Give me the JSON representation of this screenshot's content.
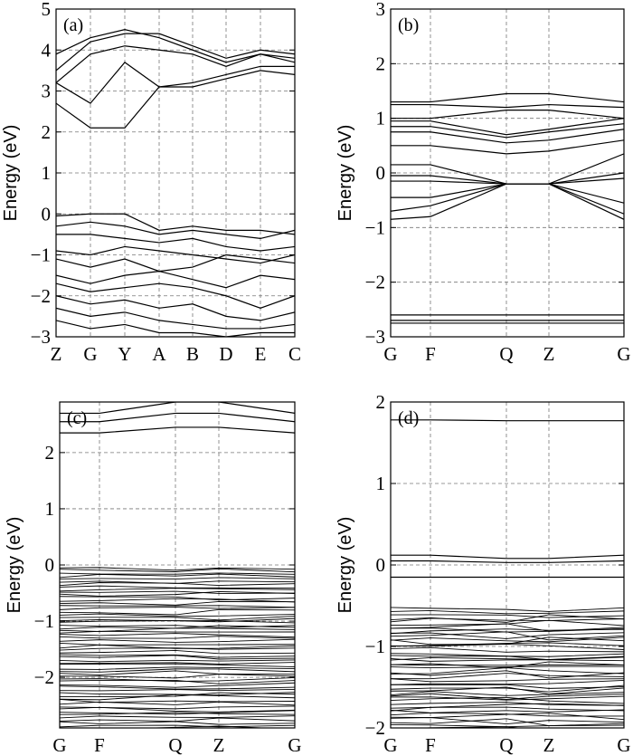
{
  "chart_data": [
    {
      "type": "line",
      "panel_label": "(a)",
      "ylabel": "Energy (eV)",
      "ylim": [
        -3,
        5
      ],
      "yticks": [
        -3,
        -2,
        -1,
        0,
        1,
        2,
        3,
        4,
        5
      ],
      "ytick_labels": [
        "−3",
        "−2",
        "−1",
        "0",
        "1",
        "2",
        "3",
        "4",
        "5"
      ],
      "x_points": [
        "Z",
        "G",
        "Y",
        "A",
        "B",
        "D",
        "E",
        "C"
      ],
      "grid": true,
      "series": [
        {
          "values": [
            3.5,
            4.2,
            4.4,
            4.4,
            4.1,
            3.8,
            4.0,
            3.9
          ]
        },
        {
          "values": [
            3.9,
            4.3,
            4.5,
            4.3,
            4.0,
            3.7,
            3.9,
            3.8
          ]
        },
        {
          "values": [
            3.2,
            3.9,
            4.1,
            4.0,
            3.9,
            3.6,
            3.9,
            3.7
          ]
        },
        {
          "values": [
            3.2,
            2.7,
            3.7,
            3.1,
            3.1,
            3.3,
            3.5,
            3.4
          ]
        },
        {
          "values": [
            2.7,
            2.1,
            2.1,
            3.1,
            3.2,
            3.4,
            3.6,
            3.6
          ]
        },
        {
          "values": [
            -0.05,
            0.0,
            0.0,
            -0.4,
            -0.3,
            -0.4,
            -0.4,
            -0.5
          ]
        },
        {
          "values": [
            -0.3,
            -0.2,
            -0.3,
            -0.5,
            -0.4,
            -0.5,
            -0.6,
            -0.4
          ]
        },
        {
          "values": [
            -0.5,
            -0.5,
            -0.6,
            -0.7,
            -0.6,
            -0.8,
            -0.9,
            -0.8
          ]
        },
        {
          "values": [
            -0.9,
            -1.0,
            -0.8,
            -0.9,
            -1.0,
            -1.1,
            -1.2,
            -1.0
          ]
        },
        {
          "values": [
            -1.1,
            -1.3,
            -1.1,
            -1.4,
            -1.3,
            -1.0,
            -1.1,
            -1.2
          ]
        },
        {
          "values": [
            -1.5,
            -1.7,
            -1.5,
            -1.4,
            -1.6,
            -1.8,
            -1.5,
            -1.6
          ]
        },
        {
          "values": [
            -1.7,
            -1.9,
            -1.8,
            -1.7,
            -1.8,
            -2.0,
            -2.3,
            -2.0
          ]
        },
        {
          "values": [
            -2.0,
            -2.2,
            -2.1,
            -2.3,
            -2.2,
            -2.5,
            -2.6,
            -2.4
          ]
        },
        {
          "values": [
            -2.3,
            -2.5,
            -2.4,
            -2.6,
            -2.7,
            -2.8,
            -2.8,
            -2.7
          ]
        },
        {
          "values": [
            -2.6,
            -2.8,
            -2.7,
            -2.9,
            -2.9,
            -3.0,
            -2.9,
            -2.9
          ]
        }
      ]
    },
    {
      "type": "line",
      "panel_label": "(b)",
      "ylabel": "Energy (eV)",
      "ylim": [
        -3,
        3
      ],
      "yticks": [
        -3,
        -2,
        -1,
        0,
        1,
        2,
        3
      ],
      "ytick_labels": [
        "−3",
        "−2",
        "−1",
        "0",
        "1",
        "2",
        "3"
      ],
      "x_points": [
        "G",
        "F",
        "Q",
        "Z",
        "G"
      ],
      "grid": true,
      "series": [
        {
          "values": [
            1.3,
            1.3,
            1.45,
            1.45,
            1.3
          ]
        },
        {
          "values": [
            1.25,
            1.25,
            1.2,
            1.25,
            1.2
          ]
        },
        {
          "values": [
            1.0,
            1.0,
            1.15,
            1.15,
            1.0
          ]
        },
        {
          "values": [
            0.95,
            0.95,
            0.7,
            0.8,
            1.0
          ]
        },
        {
          "values": [
            0.85,
            0.85,
            0.65,
            0.75,
            0.9
          ]
        },
        {
          "values": [
            0.75,
            0.75,
            0.55,
            0.6,
            0.8
          ]
        },
        {
          "values": [
            0.5,
            0.5,
            0.35,
            0.4,
            0.6
          ]
        },
        {
          "values": [
            0.15,
            0.15,
            -0.2,
            -0.2,
            0.35
          ]
        },
        {
          "values": [
            -0.05,
            -0.05,
            -0.2,
            -0.2,
            0.0
          ]
        },
        {
          "values": [
            -0.15,
            -0.15,
            -0.2,
            -0.2,
            -0.1
          ]
        },
        {
          "values": [
            -0.45,
            -0.45,
            -0.2,
            -0.2,
            -0.55
          ]
        },
        {
          "values": [
            -0.7,
            -0.6,
            -0.2,
            -0.2,
            -0.75
          ]
        },
        {
          "values": [
            -0.85,
            -0.8,
            -0.2,
            -0.2,
            -0.85
          ]
        },
        {
          "values": [
            -2.6,
            -2.6,
            -2.6,
            -2.6,
            -2.6
          ]
        },
        {
          "values": [
            -2.7,
            -2.7,
            -2.7,
            -2.7,
            -2.7
          ]
        },
        {
          "values": [
            -2.75,
            -2.75,
            -2.75,
            -2.75,
            -2.75
          ]
        }
      ]
    },
    {
      "type": "line",
      "panel_label": "(c)",
      "ylabel": "Energy (eV)",
      "ylim": [
        -2.9,
        2.9
      ],
      "yticks": [
        -2,
        -1,
        0,
        1,
        2
      ],
      "ytick_labels": [
        "−2",
        "−1",
        "0",
        "1",
        "2"
      ],
      "x_points": [
        "G",
        "F",
        "Q",
        "Z",
        "G"
      ],
      "grid": true,
      "series": [
        {
          "values": [
            2.7,
            2.7,
            2.9,
            2.9,
            2.7
          ]
        },
        {
          "values": [
            2.55,
            2.55,
            2.7,
            2.7,
            2.55
          ]
        },
        {
          "values": [
            2.35,
            2.35,
            2.45,
            2.45,
            2.35
          ]
        }
      ],
      "valence_band_count": 60,
      "valence_range": [
        -2.9,
        -0.05
      ]
    },
    {
      "type": "line",
      "panel_label": "(d)",
      "ylabel": "Energy (eV)",
      "ylim": [
        -2,
        2
      ],
      "yticks": [
        -2,
        -1,
        0,
        1,
        2
      ],
      "ytick_labels": [
        "−2",
        "−1",
        "0",
        "1",
        "2"
      ],
      "x_points": [
        "G",
        "F",
        "Q",
        "Z",
        "G"
      ],
      "grid": true,
      "series": [
        {
          "values": [
            1.78,
            1.78,
            1.77,
            1.77,
            1.77
          ]
        },
        {
          "values": [
            0.12,
            0.12,
            0.08,
            0.08,
            0.12
          ]
        },
        {
          "values": [
            0.05,
            0.05,
            0.03,
            0.03,
            0.05
          ]
        },
        {
          "values": [
            -0.15,
            -0.15,
            -0.15,
            -0.15,
            -0.15
          ]
        }
      ],
      "valence_band_count": 45,
      "valence_range": [
        -2.0,
        -0.55
      ]
    }
  ]
}
